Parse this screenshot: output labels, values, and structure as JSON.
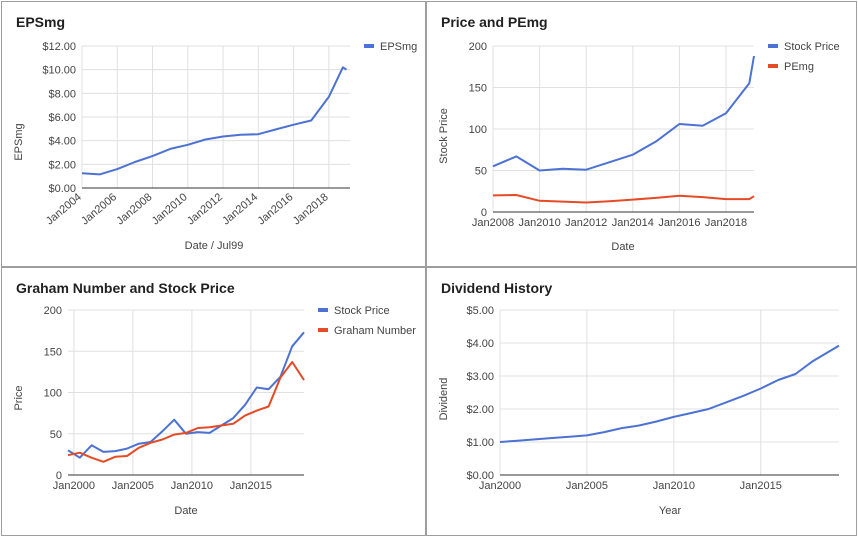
{
  "chart_data": [
    {
      "type": "line",
      "title": "EPSmg",
      "xlabel": "Date / Jul99",
      "ylabel": "EPSmg",
      "x_ticks": [
        "Jan2004",
        "Jan2006",
        "Jan2008",
        "Jan2010",
        "Jan2012",
        "Jan2014",
        "Jan2016",
        "Jan2018"
      ],
      "xlim": [
        2004,
        2019.2
      ],
      "y_ticks": [
        "$0.00",
        "$2.00",
        "$4.00",
        "$6.00",
        "$8.00",
        "$10.00",
        "$12.00"
      ],
      "ylim": [
        0,
        12
      ],
      "legend": "top-right",
      "grid": true,
      "series": [
        {
          "name": "EPSmg",
          "color": "#4c72d3",
          "x": [
            2004,
            2005,
            2006,
            2007,
            2008,
            2009,
            2010,
            2011,
            2012,
            2013,
            2014,
            2015,
            2016,
            2017,
            2018,
            2018.8,
            2019
          ],
          "y": [
            1.25,
            1.15,
            1.6,
            2.2,
            2.7,
            3.3,
            3.65,
            4.1,
            4.35,
            4.5,
            4.55,
            4.95,
            5.35,
            5.7,
            7.7,
            10.2,
            10.0
          ]
        }
      ]
    },
    {
      "type": "line",
      "title": "Price and PEmg",
      "xlabel": "Date",
      "ylabel": "Stock Price",
      "x_ticks": [
        "Jan2008",
        "Jan2010",
        "Jan2012",
        "Jan2014",
        "Jan2016",
        "Jan2018"
      ],
      "xlim": [
        2008,
        2019.2
      ],
      "y_ticks": [
        "0",
        "50",
        "100",
        "150",
        "200"
      ],
      "ylim": [
        0,
        200
      ],
      "legend": "top-right",
      "grid": true,
      "series": [
        {
          "name": "Stock Price",
          "color": "#4c72d3",
          "x": [
            2008,
            2009,
            2010,
            2011,
            2012,
            2013,
            2014,
            2015,
            2016,
            2017,
            2018,
            2019,
            2019.2
          ],
          "y": [
            55,
            67,
            50,
            52,
            51,
            60,
            69,
            85,
            106,
            104,
            119,
            155,
            188
          ]
        },
        {
          "name": "PEmg",
          "color": "#e54b25",
          "x": [
            2008,
            2009,
            2010,
            2011,
            2012,
            2013,
            2014,
            2015,
            2016,
            2017,
            2018,
            2019,
            2019.2
          ],
          "y": [
            20,
            20.5,
            13.5,
            12.5,
            11.5,
            13,
            15,
            17,
            19.5,
            18,
            15.5,
            15.5,
            19
          ]
        }
      ]
    },
    {
      "type": "line",
      "title": "Graham Number and Stock Price",
      "xlabel": "Date",
      "ylabel": "Price",
      "x_ticks": [
        "Jan2000",
        "Jan2005",
        "Jan2010",
        "Jan2015"
      ],
      "xlim": [
        1999.5,
        2019.5
      ],
      "y_ticks": [
        "0",
        "50",
        "100",
        "150",
        "200"
      ],
      "ylim": [
        0,
        200
      ],
      "legend": "top-right",
      "grid": true,
      "series": [
        {
          "name": "Stock Price",
          "color": "#4c72d3",
          "x": [
            1999.5,
            2000.5,
            2001.5,
            2002.5,
            2003.5,
            2004.5,
            2005.5,
            2006.5,
            2007.5,
            2008.5,
            2009.5,
            2010.5,
            2011.5,
            2012.5,
            2013.5,
            2014.5,
            2015.5,
            2016.5,
            2017.5,
            2018.5,
            2019.5
          ],
          "y": [
            30,
            21,
            36,
            28,
            29,
            32,
            38,
            40,
            53,
            67,
            50,
            52,
            51,
            60,
            69,
            85,
            106,
            104,
            119,
            156,
            173
          ]
        },
        {
          "name": "Graham Number",
          "color": "#e54b25",
          "x": [
            1999.5,
            2000.5,
            2001.5,
            2002.5,
            2003.5,
            2004.5,
            2005.5,
            2006.5,
            2007.5,
            2008.5,
            2009.5,
            2010.5,
            2011.5,
            2012.5,
            2013.5,
            2014.5,
            2015.5,
            2016.5,
            2017.5,
            2018.5,
            2019.5
          ],
          "y": [
            24,
            27,
            21,
            16,
            22,
            23,
            33,
            39,
            43,
            49,
            51,
            57,
            58,
            60,
            62,
            72,
            78,
            83,
            118,
            137,
            115
          ]
        }
      ]
    },
    {
      "type": "line",
      "title": "Dividend History",
      "xlabel": "Year",
      "ylabel": "Dividend",
      "x_ticks": [
        "Jan2000",
        "Jan2005",
        "Jan2010",
        "Jan2015"
      ],
      "xlim": [
        2000,
        2019.5
      ],
      "y_ticks": [
        "$0.00",
        "$1.00",
        "$2.00",
        "$3.00",
        "$4.00",
        "$5.00"
      ],
      "ylim": [
        0,
        5
      ],
      "legend": "none",
      "grid": true,
      "series": [
        {
          "color": "#4c72d3",
          "x": [
            2000,
            2001,
            2002,
            2003,
            2004,
            2005,
            2006,
            2007,
            2008,
            2009,
            2010,
            2011,
            2012,
            2013,
            2014,
            2015,
            2016,
            2017,
            2018,
            2019.5
          ],
          "y": [
            1.0,
            1.04,
            1.08,
            1.12,
            1.16,
            1.2,
            1.3,
            1.42,
            1.5,
            1.62,
            1.76,
            1.88,
            2.0,
            2.2,
            2.4,
            2.62,
            2.88,
            3.06,
            3.45,
            3.92
          ]
        }
      ]
    }
  ]
}
